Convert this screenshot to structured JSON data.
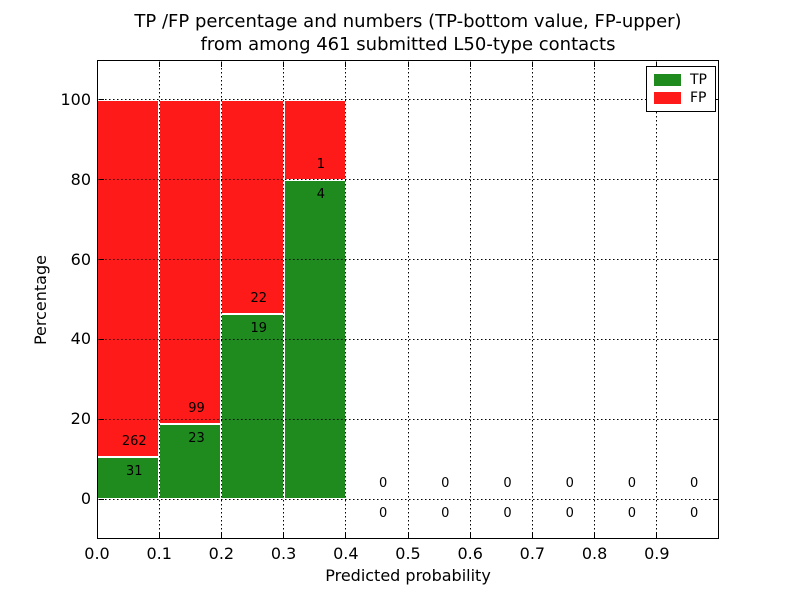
{
  "figure": {
    "title_line1": "TP /FP percentage and numbers (TP-bottom value, FP-upper)",
    "title_line2": "from among 461 submitted L50-type contacts"
  },
  "chart_data": {
    "type": "bar",
    "stacked": true,
    "title": "TP /FP percentage and numbers (TP-bottom value, FP-upper)\nfrom among 461 submitted L50-type contacts",
    "xlabel": "Predicted probability",
    "ylabel": "Percentage",
    "xlim": [
      0.0,
      1.0
    ],
    "ylim": [
      -10,
      110
    ],
    "grid": true,
    "grid_style": "dotted",
    "total_contacts": 461,
    "bin_edges": [
      0.0,
      0.1,
      0.2,
      0.3,
      0.4,
      0.5,
      0.6,
      0.7,
      0.8,
      0.9,
      1.0
    ],
    "xtick_values": [
      0.0,
      0.1,
      0.2,
      0.3,
      0.4,
      0.5,
      0.6,
      0.7,
      0.8,
      0.9
    ],
    "xtick_labels": [
      "0.0",
      "0.1",
      "0.2",
      "0.3",
      "0.4",
      "0.5",
      "0.6",
      "0.7",
      "0.8",
      "0.9"
    ],
    "ytick_values": [
      0,
      20,
      40,
      60,
      80,
      100
    ],
    "ytick_labels": [
      "0",
      "20",
      "40",
      "60",
      "80",
      "100"
    ],
    "series": [
      {
        "name": "TP",
        "values": [
          31,
          23,
          19,
          4,
          0,
          0,
          0,
          0,
          0,
          0
        ]
      },
      {
        "name": "FP",
        "values": [
          262,
          99,
          22,
          1,
          0,
          0,
          0,
          0,
          0,
          0
        ]
      }
    ],
    "tp_percentages": [
      10.58,
      18.85,
      46.34,
      80.0,
      0,
      0,
      0,
      0,
      0,
      0
    ],
    "fp_percentages": [
      89.42,
      81.15,
      53.66,
      20.0,
      0,
      0,
      0,
      0,
      0,
      0
    ],
    "colors": {
      "tp": "#1f8b1f",
      "fp": "#ff1a1a",
      "bar_edge": "#ffffff",
      "axes": "#000000"
    },
    "legend": {
      "position": "upper right",
      "entries": [
        {
          "label": "TP",
          "color_key": "tp"
        },
        {
          "label": "FP",
          "color_key": "fp"
        }
      ]
    }
  }
}
